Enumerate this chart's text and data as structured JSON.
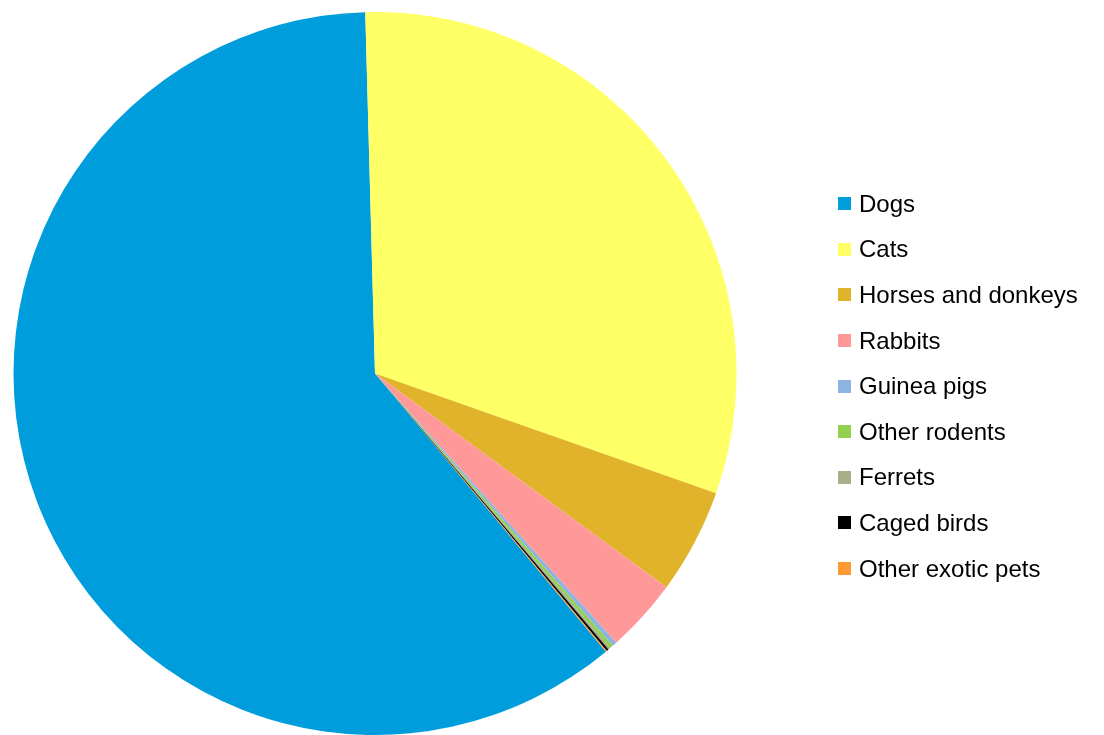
{
  "chart_data": {
    "type": "pie",
    "categories": [
      "Dogs",
      "Cats",
      "Horses and donkeys",
      "Rabbits",
      "Guinea pigs",
      "Other rodents",
      "Ferrets",
      "Caged birds",
      "Other exotic pets"
    ],
    "values": [
      60.6,
      30.8,
      4.7,
      3.3,
      0.2,
      0.15,
      0.1,
      0.1,
      0.05
    ],
    "colors": [
      "#009ddc",
      "#ffff66",
      "#e0b32b",
      "#ff9999",
      "#8db3e2",
      "#92d050",
      "#a9af8a",
      "#000000",
      "#ff9933"
    ],
    "legend": "right"
  }
}
